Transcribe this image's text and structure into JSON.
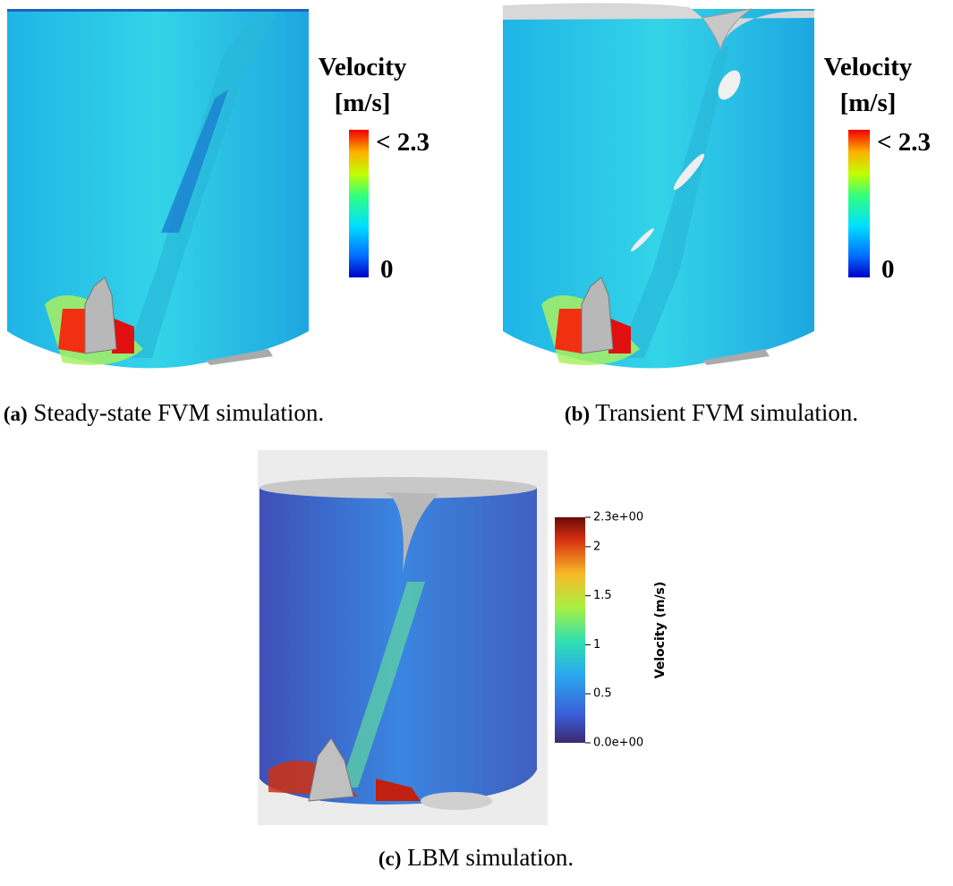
{
  "panels": [
    {
      "legend": {
        "title": "Velocity",
        "unit": "[m/s]",
        "max_label": "< 2.3",
        "min_label": "0"
      },
      "caption": {
        "label": "(a)",
        "text": "Steady-state FVM simulation."
      }
    },
    {
      "legend": {
        "title": "Velocity",
        "unit": "[m/s]",
        "max_label": "< 2.3",
        "min_label": "0"
      },
      "caption": {
        "label": "(b)",
        "text": "Transient FVM simulation."
      }
    },
    {
      "legend": {
        "title": "Velocity (m/s)",
        "lim": [
          0,
          2.3
        ],
        "ticks": [
          {
            "value": 2.3,
            "label": "2.3e+00"
          },
          2,
          1.5,
          1,
          0.5,
          {
            "value": 0,
            "label": "0.0e+00"
          }
        ]
      },
      "caption": {
        "label": "(c)",
        "text": "LBM simulation."
      }
    }
  ]
}
